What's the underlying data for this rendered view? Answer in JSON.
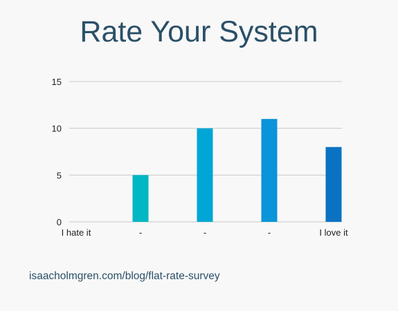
{
  "title": "Rate Your System",
  "footer_link": "isaacholmgren.com/blog/flat-rate-survey",
  "chart_data": {
    "type": "bar",
    "categories": [
      "I hate it",
      "-",
      "-",
      "-",
      "I love it"
    ],
    "values": [
      0,
      5,
      10,
      11,
      8
    ],
    "ylim": [
      0,
      15
    ],
    "yticks": [
      0,
      5,
      10,
      15
    ],
    "grid": true,
    "colors": [
      "#00b7c3",
      "#00b7c3",
      "#00a6d6",
      "#0a94d9",
      "#0a72c2"
    ],
    "gridline_color": "#c8c8c8",
    "text_color": "#222222"
  }
}
